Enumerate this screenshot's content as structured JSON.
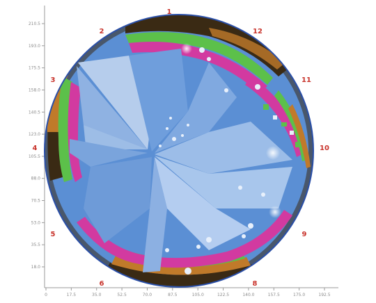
{
  "figure": {
    "y_tick_labels": [
      "210.5",
      "193.0",
      "175.5",
      "158.0",
      "140.5",
      "123.0",
      "105.5",
      "88.0",
      "70.5",
      "53.0",
      "35.5",
      "18.0"
    ],
    "x_tick_labels": [
      "0",
      "17.5",
      "35.0",
      "52.5",
      "70.0",
      "87.5",
      "105.0",
      "122.5",
      "140.0",
      "157.5",
      "175.0",
      "192.5"
    ],
    "clock_positions": [
      "1",
      "2",
      "3",
      "4",
      "5",
      "6",
      "8",
      "9",
      "10",
      "11",
      "12"
    ],
    "colors": {
      "label_red": "#c8322a",
      "axis": "#9a9a9a",
      "rim_dark": "#3a2a14",
      "rim_orange": "#c07a2a",
      "rim_magenta": "#d23aa0",
      "rim_green": "#5cc04a",
      "interior_blue": "#5b8fd4",
      "interior_light": "#b6cdec",
      "interior_mid": "#7ea8de",
      "outline": "#2a4fa8"
    }
  }
}
